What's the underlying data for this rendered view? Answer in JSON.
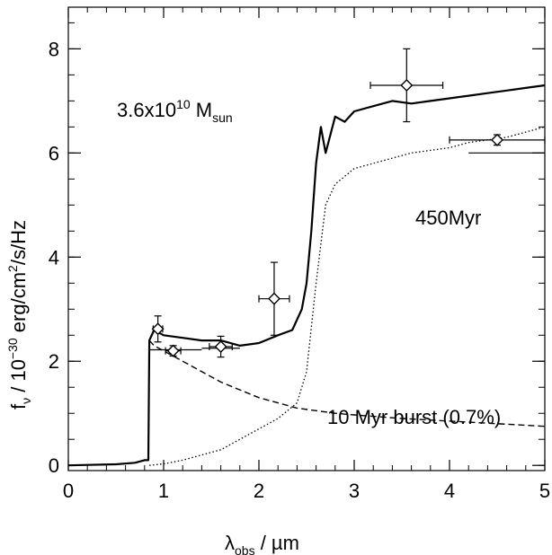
{
  "chart_data": {
    "type": "line",
    "title": "",
    "xlabel": {
      "main": "λ",
      "sub": "obs",
      "rest": " / µm"
    },
    "ylabel": {
      "main": "f",
      "sub": "ν",
      "mid": " / 10",
      "sup": "−30",
      "rest": " erg/cm",
      "sup2": "2",
      "rest2": "/s/Hz"
    },
    "xlim": [
      0,
      5
    ],
    "ylim": [
      -0.1,
      8.8
    ],
    "x_ticks": [
      0,
      1,
      2,
      3,
      4,
      5
    ],
    "x_tick_labels": [
      "0",
      "1",
      "2",
      "3",
      "4",
      "5"
    ],
    "y_ticks": [
      0,
      2,
      4,
      6,
      8
    ],
    "y_tick_labels": [
      "0",
      "2",
      "4",
      "6",
      "8"
    ],
    "grid": false,
    "annotations": {
      "mass": {
        "prefix": "3.6x10",
        "exp": "10",
        "mid": " M",
        "sub": "sun"
      },
      "age": "450Myr",
      "burst": "10 Myr burst (0.7%)"
    },
    "series": [
      {
        "style": "solid-thick",
        "x": [
          0.0,
          0.5,
          0.7,
          0.8,
          0.84,
          0.85,
          0.9,
          1.0,
          1.2,
          1.4,
          1.6,
          1.8,
          2.0,
          2.2,
          2.35,
          2.45,
          2.5,
          2.55,
          2.6,
          2.65,
          2.7,
          2.8,
          2.9,
          3.0,
          3.2,
          3.4,
          3.6,
          3.8,
          4.0,
          4.2,
          4.4,
          4.6,
          4.8,
          5.0
        ],
        "y": [
          0.0,
          0.02,
          0.05,
          0.1,
          0.1,
          2.4,
          2.6,
          2.5,
          2.45,
          2.4,
          2.4,
          2.3,
          2.35,
          2.5,
          2.6,
          3.0,
          3.5,
          4.5,
          5.8,
          6.5,
          6.0,
          6.7,
          6.6,
          6.8,
          6.9,
          7.0,
          6.95,
          7.0,
          7.05,
          7.1,
          7.15,
          7.2,
          7.25,
          7.3
        ]
      },
      {
        "style": "dotted",
        "x": [
          0.85,
          1.0,
          1.2,
          1.4,
          1.6,
          1.8,
          2.0,
          2.2,
          2.4,
          2.5,
          2.6,
          2.7,
          2.8,
          3.0,
          3.2,
          3.4,
          3.6,
          3.8,
          4.0,
          4.2,
          4.4,
          4.6,
          4.8,
          5.0
        ],
        "y": [
          0.0,
          0.03,
          0.1,
          0.2,
          0.3,
          0.5,
          0.7,
          0.9,
          1.2,
          1.8,
          3.5,
          5.0,
          5.4,
          5.7,
          5.8,
          5.9,
          6.0,
          6.05,
          6.1,
          6.2,
          6.25,
          6.3,
          6.4,
          6.5
        ]
      },
      {
        "style": "dashed",
        "x": [
          0.85,
          0.9,
          1.0,
          1.2,
          1.4,
          1.6,
          1.8,
          2.0,
          2.2,
          2.4,
          2.6,
          2.8,
          3.0,
          3.5,
          4.0,
          4.5,
          5.0
        ],
        "y": [
          2.4,
          2.3,
          2.2,
          2.0,
          1.8,
          1.6,
          1.45,
          1.3,
          1.2,
          1.1,
          1.05,
          1.0,
          0.97,
          0.9,
          0.85,
          0.8,
          0.75
        ]
      }
    ],
    "model_broadband": [
      {
        "x_range": [
          0.85,
          1.4
        ],
        "y": 2.22
      },
      {
        "x_range": [
          1.4,
          1.8
        ],
        "y": 2.25
      },
      {
        "x_range": [
          4.2,
          5.0
        ],
        "y": 6.0
      }
    ],
    "observations": [
      {
        "x": 0.94,
        "y": 2.62,
        "xerr": 0.05,
        "yerr": 0.25
      },
      {
        "x": 1.1,
        "y": 2.2,
        "xerr": 0.08,
        "yerr": 0.1
      },
      {
        "x": 1.6,
        "y": 2.28,
        "xerr": 0.12,
        "yerr": 0.2
      },
      {
        "x": 2.16,
        "y": 3.2,
        "xerr": 0.16,
        "yerr": 0.7
      },
      {
        "x": 3.55,
        "y": 7.3,
        "xerr": 0.38,
        "yerr": 0.7
      },
      {
        "x": 4.5,
        "y": 6.25,
        "xerr": 0.5,
        "yerr": 0.1
      }
    ]
  }
}
